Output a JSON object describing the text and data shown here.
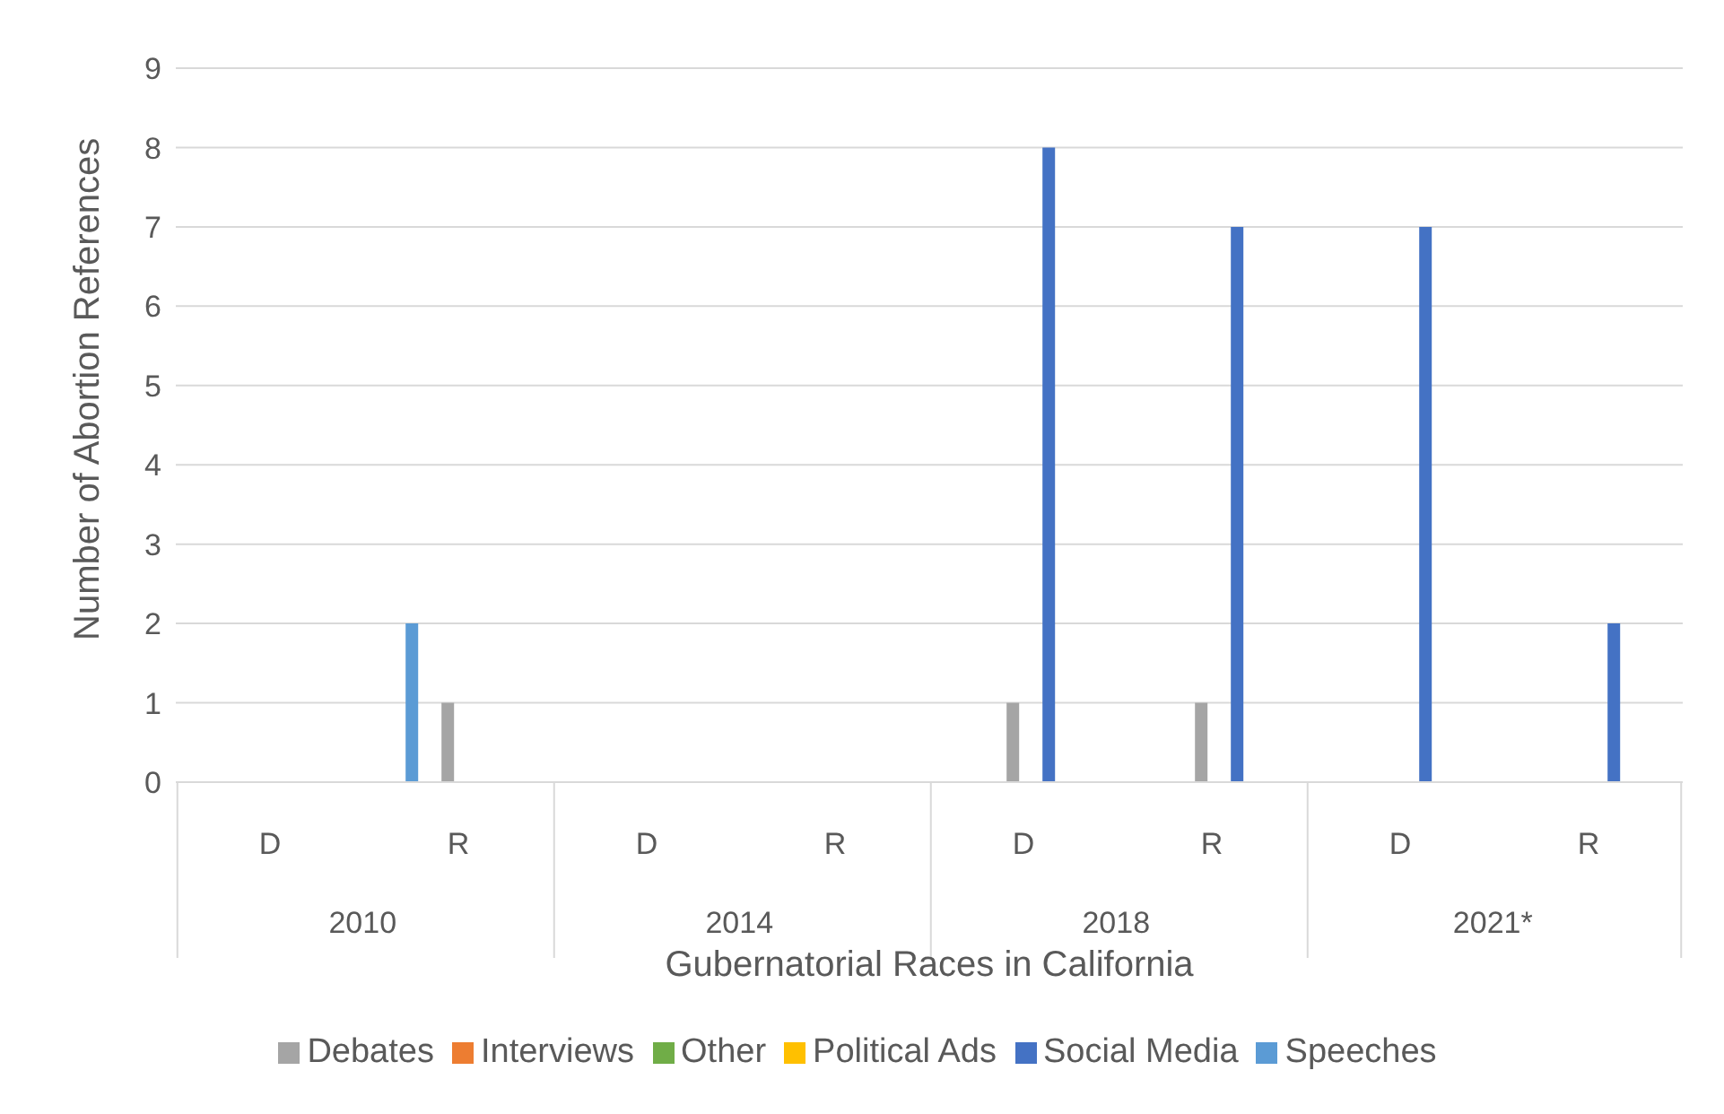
{
  "chart_data": {
    "type": "bar",
    "xlabel": "Gubernatorial Races in California",
    "ylabel": "Number of Abortion References",
    "categories": [
      "D",
      "R",
      "D",
      "R",
      "D",
      "R",
      "D",
      "R"
    ],
    "annotations": [
      "2010",
      "2014",
      "2018",
      "2021*"
    ],
    "series": [
      {
        "name": "Speeches",
        "color": "#5b9bd5",
        "values": [
          0,
          2,
          0,
          0,
          0,
          0,
          0,
          0
        ]
      },
      {
        "name": "Interviews",
        "color": "#ed7d31",
        "values": [
          0,
          0,
          0,
          0,
          0,
          0,
          0,
          0
        ]
      },
      {
        "name": "Debates",
        "color": "#a5a5a5",
        "values": [
          0,
          1,
          0,
          0,
          1,
          1,
          0,
          0
        ]
      },
      {
        "name": "Political Ads",
        "color": "#ffc000",
        "values": [
          0,
          0,
          0,
          0,
          0,
          0,
          0,
          0
        ]
      },
      {
        "name": "Social Media",
        "color": "#4472c4",
        "values": [
          0,
          0,
          0,
          0,
          8,
          7,
          7,
          2
        ]
      },
      {
        "name": "Other",
        "color": "#70ad47",
        "values": [
          0,
          0,
          0,
          0,
          0,
          0,
          0,
          0
        ]
      }
    ],
    "ylim": [
      0,
      9
    ],
    "yticks": [
      0,
      1,
      2,
      3,
      4,
      5,
      6,
      7,
      8,
      9
    ],
    "grid": "y",
    "legend": "bottom"
  }
}
